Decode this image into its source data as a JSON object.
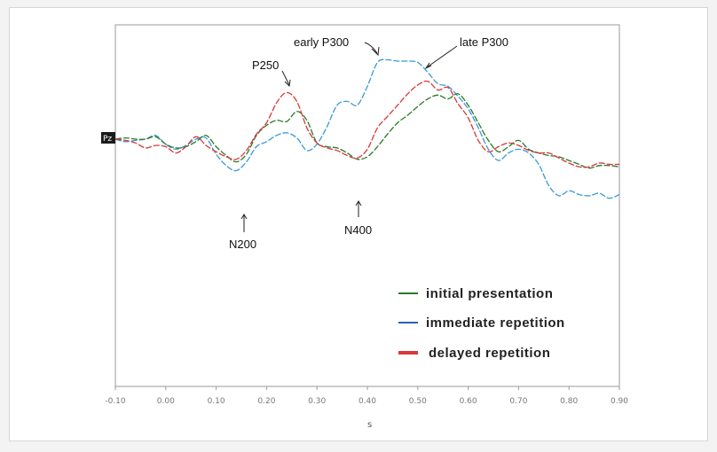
{
  "chart_data": {
    "type": "line",
    "title": "",
    "channel_label": "Pz",
    "xlabel": "s",
    "ylabel": "",
    "xlim": [
      -0.1,
      0.9
    ],
    "ylim": [
      -1,
      1
    ],
    "grid": false,
    "legend_position": "bottom-right",
    "x_ticks": [
      "-0.10",
      "0.00",
      "0.10",
      "0.20",
      "0.30",
      "0.40",
      "0.50",
      "0.60",
      "0.70",
      "0.80",
      "0.90"
    ],
    "x_tick_values": [
      -0.1,
      0.0,
      0.1,
      0.2,
      0.3,
      0.4,
      0.5,
      0.6,
      0.7,
      0.8,
      0.9
    ],
    "series": [
      {
        "name": "initial presentation",
        "color": "#2a7a2a",
        "x": [
          -0.1,
          -0.08,
          -0.06,
          -0.04,
          -0.02,
          0.0,
          0.02,
          0.04,
          0.06,
          0.08,
          0.1,
          0.12,
          0.14,
          0.16,
          0.18,
          0.2,
          0.22,
          0.24,
          0.26,
          0.28,
          0.3,
          0.32,
          0.34,
          0.36,
          0.38,
          0.4,
          0.42,
          0.44,
          0.46,
          0.48,
          0.5,
          0.52,
          0.54,
          0.56,
          0.58,
          0.6,
          0.62,
          0.64,
          0.66,
          0.68,
          0.7,
          0.72,
          0.74,
          0.76,
          0.78,
          0.8,
          0.82,
          0.84,
          0.86,
          0.88,
          0.9
        ],
        "y": [
          0.0,
          0.01,
          0.0,
          0.0,
          0.02,
          -0.04,
          -0.07,
          -0.06,
          -0.02,
          0.03,
          -0.06,
          -0.13,
          -0.18,
          -0.12,
          0.03,
          0.11,
          0.15,
          0.14,
          0.22,
          0.15,
          -0.03,
          -0.06,
          -0.07,
          -0.11,
          -0.16,
          -0.14,
          -0.06,
          0.04,
          0.13,
          0.19,
          0.26,
          0.32,
          0.35,
          0.32,
          0.36,
          0.27,
          0.13,
          -0.01,
          -0.1,
          -0.06,
          -0.01,
          -0.08,
          -0.11,
          -0.13,
          -0.14,
          -0.17,
          -0.2,
          -0.23,
          -0.21,
          -0.21,
          -0.22
        ]
      },
      {
        "name": "immediate repetition",
        "color": "#3a9ad8",
        "x": [
          -0.1,
          -0.08,
          -0.06,
          -0.04,
          -0.02,
          0.0,
          0.02,
          0.04,
          0.06,
          0.08,
          0.1,
          0.12,
          0.14,
          0.16,
          0.18,
          0.2,
          0.22,
          0.24,
          0.26,
          0.28,
          0.3,
          0.32,
          0.34,
          0.36,
          0.38,
          0.4,
          0.42,
          0.44,
          0.46,
          0.48,
          0.5,
          0.52,
          0.54,
          0.56,
          0.58,
          0.6,
          0.62,
          0.64,
          0.66,
          0.68,
          0.7,
          0.72,
          0.74,
          0.76,
          0.78,
          0.8,
          0.82,
          0.84,
          0.86,
          0.88,
          0.9
        ],
        "y": [
          0.0,
          -0.02,
          -0.01,
          0.0,
          0.03,
          -0.04,
          -0.08,
          -0.05,
          0.0,
          0.01,
          -0.12,
          -0.21,
          -0.25,
          -0.18,
          -0.06,
          -0.02,
          0.03,
          0.05,
          0.01,
          -0.09,
          -0.04,
          0.1,
          0.27,
          0.3,
          0.27,
          0.42,
          0.61,
          0.63,
          0.62,
          0.62,
          0.61,
          0.53,
          0.44,
          0.42,
          0.34,
          0.24,
          0.09,
          -0.08,
          -0.17,
          -0.11,
          -0.08,
          -0.11,
          -0.2,
          -0.37,
          -0.45,
          -0.41,
          -0.44,
          -0.45,
          -0.43,
          -0.47,
          -0.44
        ]
      },
      {
        "name": "delayed repetition",
        "color": "#d8383a",
        "x": [
          -0.1,
          -0.08,
          -0.06,
          -0.04,
          -0.02,
          0.0,
          0.02,
          0.04,
          0.06,
          0.08,
          0.1,
          0.12,
          0.14,
          0.16,
          0.18,
          0.2,
          0.22,
          0.24,
          0.26,
          0.28,
          0.3,
          0.32,
          0.34,
          0.36,
          0.38,
          0.4,
          0.42,
          0.44,
          0.46,
          0.48,
          0.5,
          0.52,
          0.54,
          0.56,
          0.58,
          0.6,
          0.62,
          0.64,
          0.66,
          0.68,
          0.7,
          0.72,
          0.74,
          0.76,
          0.78,
          0.8,
          0.82,
          0.84,
          0.86,
          0.88,
          0.9
        ],
        "y": [
          0.0,
          -0.01,
          -0.03,
          -0.07,
          -0.05,
          -0.06,
          -0.11,
          -0.06,
          0.02,
          -0.05,
          -0.1,
          -0.14,
          -0.16,
          -0.09,
          0.04,
          0.13,
          0.29,
          0.37,
          0.3,
          0.09,
          -0.03,
          -0.07,
          -0.09,
          -0.13,
          -0.15,
          -0.08,
          0.09,
          0.18,
          0.27,
          0.36,
          0.43,
          0.46,
          0.39,
          0.41,
          0.28,
          0.17,
          -0.01,
          -0.1,
          -0.06,
          -0.03,
          -0.05,
          -0.09,
          -0.11,
          -0.11,
          -0.15,
          -0.19,
          -0.22,
          -0.22,
          -0.19,
          -0.2,
          -0.2
        ]
      }
    ],
    "annotations": [
      {
        "label": "early P300"
      },
      {
        "label": "late P300"
      },
      {
        "label": "P250"
      },
      {
        "label": "N200"
      },
      {
        "label": "N400"
      }
    ]
  }
}
